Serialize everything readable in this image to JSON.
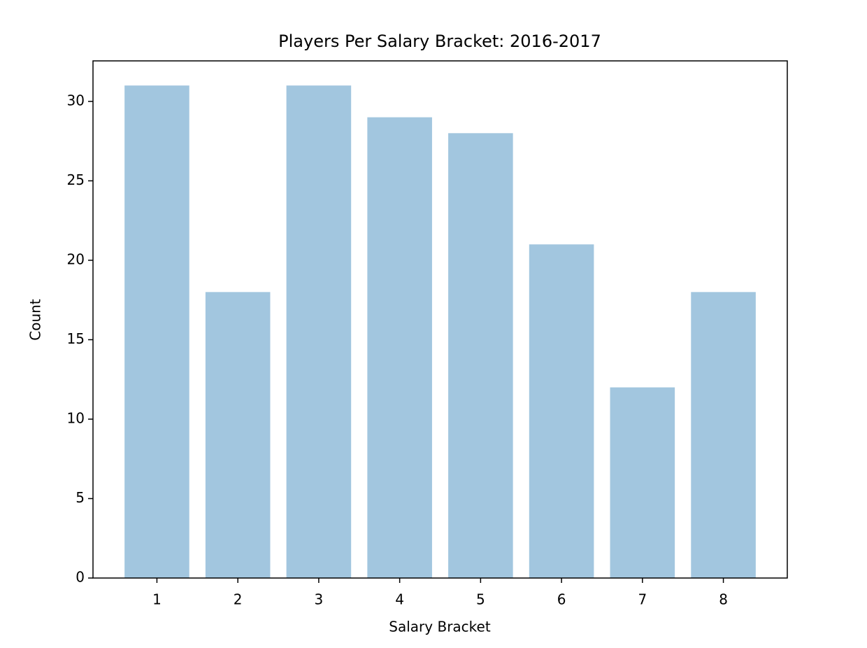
{
  "chart_data": {
    "type": "bar",
    "title": "Players Per Salary Bracket: 2016-2017",
    "x_label": "Salary Bracket",
    "y_label": "Count",
    "x": [
      1,
      2,
      3,
      4,
      5,
      6,
      7,
      8
    ],
    "values": [
      31,
      18,
      31,
      29,
      28,
      21,
      12,
      18
    ],
    "color": "#a2c6df",
    "xlim": [
      0.21,
      8.79
    ],
    "xticks": [
      1,
      2,
      3,
      4,
      5,
      6,
      7,
      8
    ],
    "ylim": [
      0,
      32.55
    ],
    "yticks": [
      0,
      5,
      10,
      15,
      20,
      25,
      30
    ],
    "grid": false
  }
}
